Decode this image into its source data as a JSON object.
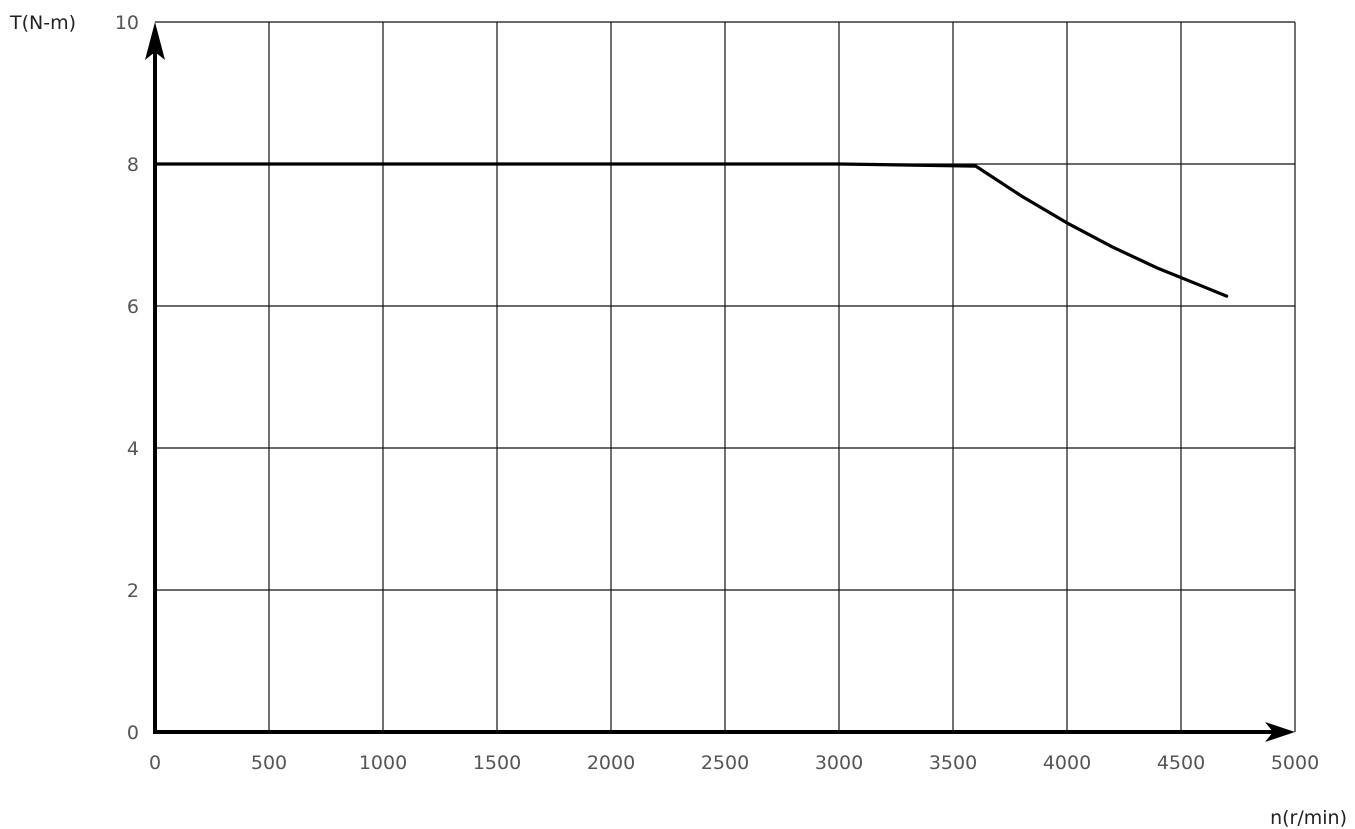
{
  "chart_data": {
    "type": "line",
    "title": "",
    "xlabel": "n(r/min)",
    "ylabel": "T(N-m)",
    "xlim": [
      0,
      5000
    ],
    "ylim": [
      0,
      10
    ],
    "x_ticks": [
      0,
      500,
      1000,
      1500,
      2000,
      2500,
      3000,
      3500,
      4000,
      4500,
      5000
    ],
    "y_ticks": [
      0,
      2,
      4,
      6,
      8,
      10
    ],
    "x_tick_labels": [
      "0",
      "500",
      "1000",
      "1500",
      "2000",
      "2500",
      "3000",
      "3500",
      "4000",
      "4500",
      "5000"
    ],
    "y_tick_labels": [
      "0",
      "2",
      "4",
      "6",
      "8",
      "10"
    ],
    "grid": true,
    "legend": "none",
    "series": [
      {
        "x": [
          0,
          3000,
          3600,
          3800,
          4000,
          4200,
          4400,
          4600,
          4700
        ],
        "y": [
          8,
          8,
          7.97,
          7.55,
          7.17,
          6.83,
          6.53,
          6.27,
          6.14
        ],
        "color": "#000000"
      }
    ]
  }
}
